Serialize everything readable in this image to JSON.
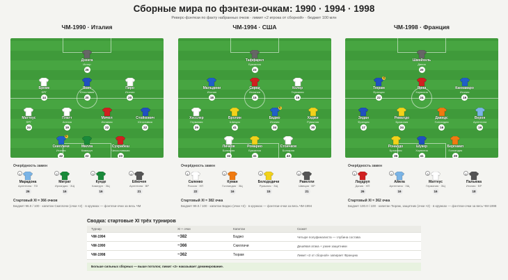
{
  "header": {
    "title": "Сборные мира по фэнтези-очкам: 1990 · 1994 · 1998",
    "subtitle": "Реверс-фэнтези по факту набранных очков · лимит «2 игрока от сборной» · бюджет 100 млн"
  },
  "teams": [
    {
      "title": "ЧМ-1990 · Италия",
      "players": [
        {
          "name": "Дзенга",
          "club": "Интер",
          "pts": "26",
          "color": "#666666"
        },
        {
          "name": "Бреме",
          "club": "ФРГ",
          "pts": "14",
          "color": "#ffffff"
        },
        {
          "name": "Ясич",
          "club": "Югославия",
          "pts": "20",
          "color": "#2050c0"
        },
        {
          "name": "Пиро",
          "club": "Италия",
          "pts": "20",
          "color": "#ffffff"
        },
        {
          "name": "Маттеус",
          "club": "ФРГ",
          "pts": "24",
          "color": "#ffffff"
        },
        {
          "name": "Платт",
          "club": "Англия",
          "pts": "19",
          "color": "#ffffff"
        },
        {
          "name": "Мичел",
          "club": "Испания",
          "pts": "22",
          "color": "#d02020"
        },
        {
          "name": "Стойкович",
          "club": "Югославия",
          "pts": "22",
          "color": "#2050c0"
        },
        {
          "name": "Скиллачи",
          "club": "Италия",
          "pts": "42",
          "color": "#2060c8",
          "cap": true
        },
        {
          "name": "Милла",
          "club": "Камерун",
          "pts": "22",
          "color": "#1a8a3a"
        },
        {
          "name": "Сухрабеш",
          "club": "Чехословакия",
          "pts": "23",
          "color": "#d02020"
        }
      ],
      "subs_title": "Очерёдность замен",
      "bench": [
        {
          "n": "1",
          "name": "Марадона",
          "club": "Аргентина · ПЗ",
          "pts": "26",
          "color": "#7ab4e6"
        },
        {
          "name": "Миграт",
          "club": "Ирландия · ЗЩ",
          "pts": "16",
          "color": "#1a8a3a",
          "n": "2"
        },
        {
          "name": "Кунде",
          "club": "Камерун · ЗЩ",
          "pts": "16",
          "color": "#1a8a3a",
          "n": "3"
        },
        {
          "name": "Ейкочея",
          "club": "Аргентина · ВР",
          "pts": "21",
          "color": "#555555",
          "n": "4"
        }
      ],
      "foot1": "Стартовый XI = 366 очков",
      "foot2": "Бюджет 96.0 / 100 · капитан Скиллачи (очки ×2) · в кружках — фэнтези-очки за весь ЧМ"
    },
    {
      "title": "ЧМ-1994 · США",
      "players": [
        {
          "name": "Таффарел",
          "club": "Бразилия",
          "pts": "23",
          "color": "#666666"
        },
        {
          "name": "Мальдини",
          "club": "Италия",
          "pts": "18",
          "color": "#2060c8"
        },
        {
          "name": "Серхи",
          "club": "Испания",
          "pts": "15",
          "color": "#d02020"
        },
        {
          "name": "Колер",
          "club": "Германия",
          "pts": "19",
          "color": "#ffffff"
        },
        {
          "name": "Хесслер",
          "club": "Германия",
          "pts": "29",
          "color": "#ffffff"
        },
        {
          "name": "Бролин",
          "club": "Швеция",
          "pts": "41",
          "color": "#f2d21a"
        },
        {
          "name": "Баджо",
          "club": "Италия",
          "pts": "34",
          "color": "#2060c8",
          "cap": true
        },
        {
          "name": "Хаджи",
          "club": "Румыния",
          "pts": "30",
          "color": "#f2d21a"
        },
        {
          "name": "Личков",
          "club": "Болгария",
          "pts": "32",
          "color": "#ffffff"
        },
        {
          "name": "Ромарио",
          "club": "Бразилия",
          "pts": "41",
          "color": "#f2d21a"
        },
        {
          "name": "Стоичков",
          "club": "Болгария",
          "pts": "43",
          "color": "#ffffff"
        }
      ],
      "subs_title": "Очерёдность замен",
      "bench": [
        {
          "name": "Саленко",
          "club": "Россия · НП",
          "pts": "22",
          "color": "#ffffff",
          "n": "1"
        },
        {
          "name": "Куман",
          "club": "Голландия · ЗЩ",
          "pts": "16",
          "color": "#f07a10",
          "n": "2"
        },
        {
          "name": "Белодедичи",
          "club": "Румыния · ЗЩ",
          "pts": "15",
          "color": "#f2d21a",
          "n": "3"
        },
        {
          "name": "Равелли",
          "club": "Швеция · ВР",
          "pts": "21",
          "color": "#555555",
          "n": "4"
        }
      ],
      "foot1": "Стартовый XI = 382 очка",
      "foot2": "Бюджет 99.0 / 100 · капитан Баджо (очки ×2) · в кружках — фэнтези-очки за весь ЧМ-1994"
    },
    {
      "title": "ЧМ-1998 · Франция",
      "players": [
        {
          "name": "Шмейхель",
          "club": "Дания",
          "pts": "20",
          "color": "#666666"
        },
        {
          "name": "Тюрам",
          "club": "Франция",
          "pts": "22",
          "color": "#2050c0",
          "cap": true
        },
        {
          "name": "Ярни",
          "club": "Хорватия",
          "pts": "24",
          "color": "#d02020"
        },
        {
          "name": "Каннаваро",
          "club": "Италия",
          "pts": "19",
          "color": "#2060c8"
        },
        {
          "name": "Зидан",
          "club": "Франция",
          "pts": "17",
          "color": "#2050c0"
        },
        {
          "name": "Ривалдо",
          "club": "Бразилия",
          "pts": "24",
          "color": "#f2d21a"
        },
        {
          "name": "Давидс",
          "club": "Голландия",
          "pts": "16",
          "color": "#f07a10"
        },
        {
          "name": "Верон",
          "club": "Аргентина",
          "pts": "19",
          "color": "#7ab4e6"
        },
        {
          "name": "Роналдо",
          "club": "Бразилия",
          "pts": "36",
          "color": "#f2d21a"
        },
        {
          "name": "Шукер",
          "club": "Хорватия",
          "pts": "41",
          "color": "#2050c0"
        },
        {
          "name": "Бергкамп",
          "club": "Голландия",
          "pts": "28",
          "color": "#f07a10"
        }
      ],
      "subs_title": "Очерёдность замен",
      "bench": [
        {
          "name": "Лаудруп",
          "club": "Дания · НП",
          "pts": "26",
          "color": "#d02020",
          "n": "1"
        },
        {
          "name": "Айяла",
          "club": "Аргентина · ЗЩ",
          "pts": "16",
          "color": "#7ab4e6",
          "n": "2"
        },
        {
          "name": "Маттеус",
          "club": "Германия · ЗЩ",
          "pts": "16",
          "color": "#ffffff",
          "n": "3"
        },
        {
          "name": "Пальюка",
          "club": "Италия · ВР",
          "pts": "18",
          "color": "#555555",
          "n": "4"
        }
      ],
      "foot1": "Стартовый XI = 362 очка",
      "foot2": "Бюджет 100.0 / 100 · капитан Тюрам, защитник (очки ×2) · в кружках — фэнтези-очки за весь ЧМ-1998"
    }
  ],
  "summary": {
    "title": "Сводка: стартовые XI трёх турниров",
    "headers": [
      "Турнир",
      "XI + очки",
      "Капитан",
      "Сюжет"
    ],
    "rows": [
      [
        "ЧМ-1994",
        "~382",
        "Баджо",
        "Четыре полуфиналиста — глубина состава"
      ],
      [
        "ЧМ-1990",
        "~366",
        "Скиллачи",
        "Дешёвая атака + узкие защитники"
      ],
      [
        "ЧМ-1998",
        "~362",
        "Тюрам",
        "Лимит «2 от сборной» запирает Францию"
      ]
    ],
    "note": "Больше сильных сборных — выше потолок; лимит «2» наказывает доминирование."
  }
}
